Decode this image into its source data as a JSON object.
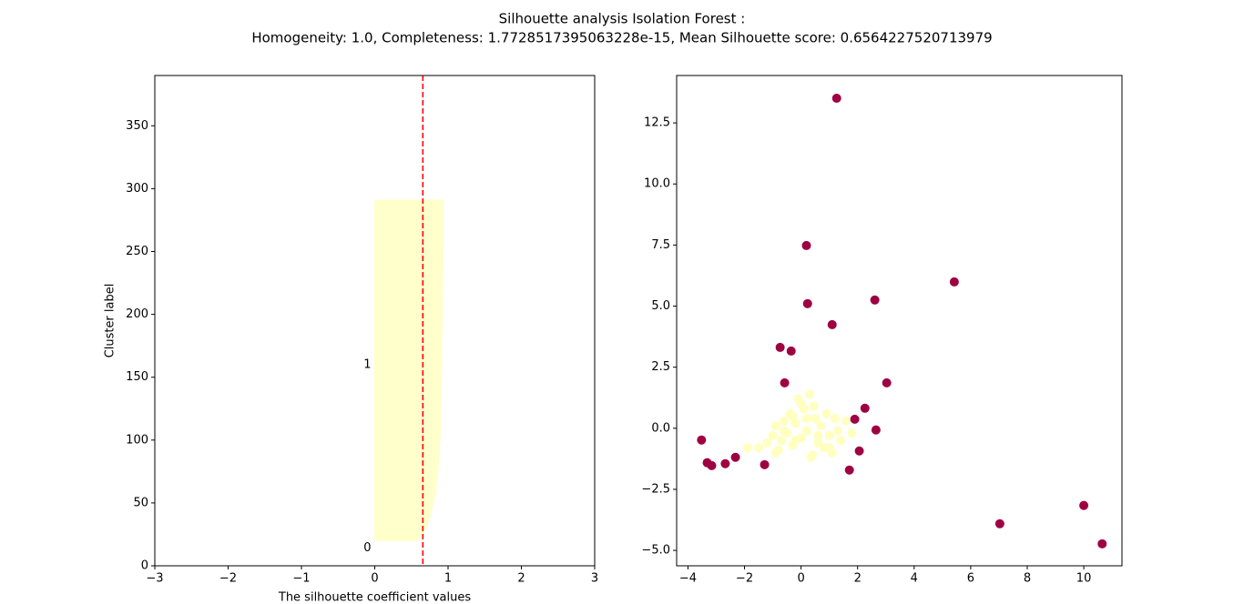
{
  "title": "Silhouette analysis Isolation Forest :",
  "subtitle": "Homogeneity: 1.0, Completeness: 1.7728517395063228e-15, Mean Silhouette score: 0.6564227520713979",
  "chart_data": [
    {
      "type": "area",
      "xlabel": "The silhouette coefficient values",
      "ylabel": "Cluster label",
      "xlim": [
        -3,
        3
      ],
      "ylim": [
        0,
        390
      ],
      "xticks": [
        {
          "value": -3,
          "label": "−3"
        },
        {
          "value": -2,
          "label": "−2"
        },
        {
          "value": -1,
          "label": "−1"
        },
        0,
        1,
        2,
        3
      ],
      "yticks": [
        0,
        50,
        100,
        150,
        200,
        250,
        300,
        350
      ],
      "color": "#ffffcc",
      "y": [
        20,
        25,
        30,
        40,
        50,
        60,
        70,
        80,
        90,
        100,
        125,
        150,
        175,
        200,
        225,
        250,
        275,
        291
      ],
      "values": [
        0.58,
        0.64,
        0.7,
        0.76,
        0.8,
        0.83,
        0.85,
        0.87,
        0.88,
        0.89,
        0.9,
        0.91,
        0.915,
        0.92,
        0.925,
        0.93,
        0.93,
        0.93
      ],
      "mean_line": 0.6564227520713979,
      "mean_line_color": "#ff0000",
      "annotations": [
        {
          "text": "0",
          "x": -0.05,
          "y": 14
        },
        {
          "text": "1",
          "x": -0.05,
          "y": 160
        }
      ]
    },
    {
      "type": "scatter",
      "xlim": [
        -4.4,
        11.35
      ],
      "ylim": [
        -5.63,
        14.44
      ],
      "xticks": [
        {
          "value": -4,
          "label": "−4"
        },
        {
          "value": -2,
          "label": "−2"
        },
        0,
        2,
        4,
        6,
        8,
        10
      ],
      "yticks": [
        {
          "value": -5,
          "label": "−5.0"
        },
        {
          "value": -2.5,
          "label": "−2.5"
        },
        {
          "value": 0,
          "label": "0.0"
        },
        2.5,
        {
          "value": 5,
          "label": "5.0"
        },
        7.5,
        {
          "value": 10,
          "label": "10.0"
        },
        12.5
      ],
      "series": [
        {
          "color": "#ffffbf",
          "x": [
            -1.5,
            -1.2,
            -1,
            -0.9,
            -0.8,
            -0.7,
            -0.6,
            -0.5,
            -0.4,
            -0.3,
            -0.2,
            -0.1,
            0,
            0.1,
            0.2,
            0.3,
            0.4,
            0.5,
            0.6,
            0.7,
            0.8,
            0.9,
            1,
            1.1,
            1.2,
            1.4,
            1.6,
            1.8,
            -1.9,
            -0.9,
            -0.2,
            0.2,
            -0.6,
            0.45,
            1.3,
            0,
            -0.3,
            0.6,
            1,
            0.35
          ],
          "values": [
            -0.8,
            -0.6,
            -0.3,
            0.1,
            -0.9,
            -0.5,
            0.3,
            -0.2,
            0.6,
            -0.7,
            0.2,
            1.2,
            -0.4,
            0.8,
            -0.1,
            1.4,
            -1.1,
            0.4,
            -0.6,
            0.1,
            -0.8,
            0.6,
            -0.3,
            -1,
            0.4,
            -0.5,
            0.3,
            -0.2,
            -0.8,
            -1,
            -0.5,
            0.4,
            -0.1,
            0.9,
            -0.1,
            1,
            0.5,
            -0.3,
            -0.8,
            -1.2
          ]
        },
        {
          "color": "#9e0142",
          "x": [
            1.26,
            0.19,
            0.23,
            5.42,
            2.61,
            1.1,
            -0.74,
            -0.35,
            -0.58,
            3.03,
            2.26,
            1.9,
            2.65,
            2.06,
            -3.52,
            -2.32,
            -2.68,
            -3.32,
            -3.16,
            -1.29,
            1.71,
            7.03,
            10.0,
            10.65
          ],
          "values": [
            13.51,
            7.48,
            5.1,
            5.99,
            5.25,
            4.24,
            3.31,
            3.16,
            1.86,
            1.86,
            0.82,
            0.37,
            -0.07,
            -0.93,
            -0.48,
            -1.19,
            -1.45,
            -1.41,
            -1.53,
            -1.49,
            -1.71,
            -3.91,
            -3.16,
            -4.73
          ]
        }
      ]
    }
  ]
}
